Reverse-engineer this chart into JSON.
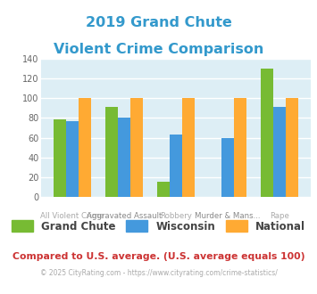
{
  "title_line1": "2019 Grand Chute",
  "title_line2": "Violent Crime Comparison",
  "title_color": "#3399cc",
  "cat_line1": [
    "",
    "Aggravated Assault",
    "",
    "Murder & Mans...",
    ""
  ],
  "cat_line2": [
    "All Violent Crime",
    "",
    "Robbery",
    "",
    "Rape"
  ],
  "grand_chute": [
    79,
    91,
    15,
    0,
    130
  ],
  "wisconsin": [
    77,
    80,
    63,
    60,
    91
  ],
  "national": [
    100,
    100,
    100,
    100,
    100
  ],
  "colors": {
    "grand_chute": "#77bb33",
    "wisconsin": "#4499dd",
    "national": "#ffaa33"
  },
  "ylim": [
    0,
    140
  ],
  "yticks": [
    0,
    20,
    40,
    60,
    80,
    100,
    120,
    140
  ],
  "plot_bg": "#ddeef5",
  "grid_color": "#ffffff",
  "footer_text": "Compared to U.S. average. (U.S. average equals 100)",
  "footer_color": "#cc3333",
  "copyright_text": "© 2025 CityRating.com - https://www.cityrating.com/crime-statistics/",
  "copyright_color": "#aaaaaa",
  "legend_labels": [
    "Grand Chute",
    "Wisconsin",
    "National"
  ]
}
